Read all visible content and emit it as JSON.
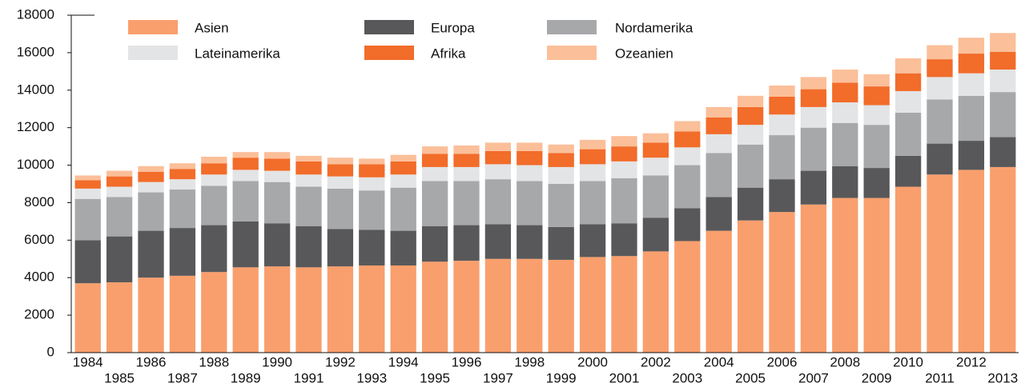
{
  "chart_data": {
    "type": "stacked_bar",
    "categories": [
      "1984",
      "1985",
      "1986",
      "1987",
      "1988",
      "1989",
      "1990",
      "1991",
      "1992",
      "1993",
      "1994",
      "1995",
      "1996",
      "1997",
      "1998",
      "1999",
      "2000",
      "2001",
      "2002",
      "2003",
      "2004",
      "2005",
      "2006",
      "2007",
      "2008",
      "2009",
      "2010",
      "2011",
      "2012",
      "2013"
    ],
    "series": [
      {
        "name": "Asien",
        "color": "#f99f6d",
        "values": [
          3700,
          3750,
          4000,
          4100,
          4300,
          4550,
          4600,
          4550,
          4600,
          4650,
          4650,
          4850,
          4900,
          5000,
          5000,
          4950,
          5100,
          5150,
          5400,
          5950,
          6500,
          7050,
          7500,
          7900,
          8250,
          8250,
          8850,
          9500,
          9750,
          9900
        ]
      },
      {
        "name": "Europa",
        "color": "#58585a",
        "values": [
          2300,
          2450,
          2500,
          2550,
          2500,
          2450,
          2300,
          2200,
          2000,
          1900,
          1850,
          1900,
          1900,
          1850,
          1800,
          1750,
          1750,
          1750,
          1800,
          1750,
          1800,
          1750,
          1750,
          1800,
          1700,
          1600,
          1650,
          1650,
          1550,
          1600
        ]
      },
      {
        "name": "Nordamerika",
        "color": "#a7a8aa",
        "values": [
          2200,
          2100,
          2050,
          2050,
          2100,
          2150,
          2200,
          2100,
          2150,
          2100,
          2300,
          2400,
          2350,
          2400,
          2350,
          2300,
          2300,
          2400,
          2250,
          2300,
          2350,
          2300,
          2350,
          2300,
          2300,
          2300,
          2300,
          2350,
          2400,
          2400
        ]
      },
      {
        "name": "Lateinamerika",
        "color": "#e3e4e5",
        "values": [
          550,
          550,
          550,
          550,
          600,
          600,
          600,
          650,
          650,
          700,
          700,
          750,
          750,
          800,
          850,
          900,
          900,
          900,
          950,
          950,
          1000,
          1050,
          1100,
          1100,
          1100,
          1050,
          1150,
          1200,
          1200,
          1200
        ]
      },
      {
        "name": "Afrika",
        "color": "#f26c2a",
        "values": [
          450,
          550,
          550,
          550,
          600,
          650,
          650,
          700,
          650,
          700,
          700,
          700,
          700,
          700,
          750,
          750,
          800,
          800,
          800,
          850,
          900,
          950,
          950,
          950,
          1050,
          1000,
          950,
          950,
          1050,
          950
        ]
      },
      {
        "name": "Ozeanien",
        "color": "#fbbf99",
        "values": [
          250,
          300,
          300,
          300,
          350,
          300,
          350,
          300,
          350,
          300,
          350,
          400,
          450,
          450,
          450,
          450,
          500,
          550,
          500,
          550,
          550,
          600,
          600,
          650,
          700,
          650,
          800,
          750,
          850,
          1000
        ]
      }
    ],
    "ylim": [
      0,
      18000
    ],
    "yticks": [
      0,
      2000,
      4000,
      6000,
      8000,
      10000,
      12000,
      14000,
      16000,
      18000
    ],
    "legend": "top-left"
  }
}
